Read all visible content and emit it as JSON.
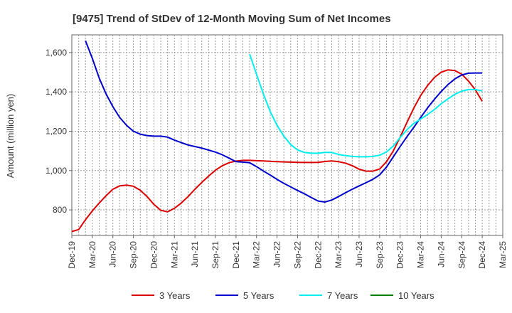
{
  "chart_data": {
    "type": "line",
    "title": "[9475]  Trend of StDev of 12-Month Moving Sum of Net Incomes",
    "xlabel": "",
    "ylabel": "Amount (million yen)",
    "ylim": [
      670,
      1690
    ],
    "yticks": [
      800,
      1000,
      1200,
      1400,
      1600
    ],
    "ytick_labels": [
      "800",
      "1,000",
      "1,200",
      "1,400",
      "1,600"
    ],
    "xlim": [
      "2019-12",
      "2025-03"
    ],
    "xticks": [
      "Dec-19",
      "Mar-20",
      "Jun-20",
      "Sep-20",
      "Dec-20",
      "Mar-21",
      "Jun-21",
      "Sep-21",
      "Dec-21",
      "Mar-22",
      "Jun-22",
      "Sep-22",
      "Dec-22",
      "Mar-23",
      "Jun-23",
      "Sep-23",
      "Dec-23",
      "Mar-24",
      "Jun-24",
      "Sep-24",
      "Dec-24",
      "Mar-25"
    ],
    "grid": true,
    "legend_position": "bottom",
    "series": [
      {
        "name": "3 Years",
        "color": "#dd0000",
        "x": [
          "2019-12",
          "2020-01",
          "2020-02",
          "2020-03",
          "2020-04",
          "2020-05",
          "2020-06",
          "2020-07",
          "2020-08",
          "2020-09",
          "2020-10",
          "2020-11",
          "2020-12",
          "2021-01",
          "2021-02",
          "2021-03",
          "2021-04",
          "2021-05",
          "2021-06",
          "2021-07",
          "2021-08",
          "2021-09",
          "2021-10",
          "2021-11",
          "2021-12",
          "2022-01",
          "2022-02",
          "2022-03",
          "2022-04",
          "2022-05",
          "2022-06",
          "2022-07",
          "2022-08",
          "2022-09",
          "2022-10",
          "2022-11",
          "2022-12",
          "2023-01",
          "2023-02",
          "2023-03",
          "2023-04",
          "2023-05",
          "2023-06",
          "2023-07",
          "2023-08",
          "2023-09",
          "2023-10",
          "2023-11",
          "2023-12",
          "2024-01",
          "2024-02",
          "2024-03",
          "2024-04",
          "2024-05",
          "2024-06",
          "2024-07",
          "2024-08",
          "2024-09",
          "2024-10",
          "2024-11",
          "2024-12"
        ],
        "values": [
          690,
          700,
          750,
          795,
          835,
          872,
          905,
          922,
          926,
          920,
          900,
          868,
          828,
          798,
          790,
          808,
          835,
          868,
          905,
          940,
          972,
          1002,
          1025,
          1040,
          1048,
          1052,
          1052,
          1050,
          1049,
          1047,
          1045,
          1044,
          1043,
          1042,
          1041,
          1041,
          1042,
          1046,
          1049,
          1045,
          1038,
          1025,
          1007,
          997,
          997,
          1008,
          1045,
          1100,
          1170,
          1245,
          1318,
          1382,
          1432,
          1473,
          1500,
          1512,
          1508,
          1490,
          1455,
          1410,
          1352
        ]
      },
      {
        "name": "5 Years",
        "color": "#0000cc",
        "x": [
          "2020-02",
          "2020-03",
          "2020-04",
          "2020-05",
          "2020-06",
          "2020-07",
          "2020-08",
          "2020-09",
          "2020-10",
          "2020-11",
          "2020-12",
          "2021-01",
          "2021-02",
          "2021-03",
          "2021-04",
          "2021-05",
          "2021-06",
          "2021-07",
          "2021-08",
          "2021-09",
          "2021-10",
          "2021-11",
          "2021-12",
          "2022-01",
          "2022-02",
          "2022-03",
          "2022-04",
          "2022-05",
          "2022-06",
          "2022-07",
          "2022-08",
          "2022-09",
          "2022-10",
          "2022-11",
          "2022-12",
          "2023-01",
          "2023-02",
          "2023-03",
          "2023-04",
          "2023-05",
          "2023-06",
          "2023-07",
          "2023-08",
          "2023-09",
          "2023-10",
          "2023-11",
          "2023-12",
          "2024-01",
          "2024-02",
          "2024-03",
          "2024-04",
          "2024-05",
          "2024-06",
          "2024-07",
          "2024-08",
          "2024-09",
          "2024-10",
          "2024-11",
          "2024-12"
        ],
        "values": [
          1660,
          1570,
          1470,
          1390,
          1325,
          1270,
          1230,
          1200,
          1185,
          1178,
          1175,
          1175,
          1170,
          1155,
          1142,
          1130,
          1122,
          1114,
          1104,
          1094,
          1080,
          1063,
          1045,
          1043,
          1040,
          1020,
          998,
          977,
          955,
          935,
          917,
          899,
          882,
          863,
          845,
          840,
          850,
          868,
          887,
          905,
          922,
          938,
          955,
          978,
          1018,
          1070,
          1122,
          1172,
          1220,
          1270,
          1318,
          1362,
          1402,
          1437,
          1466,
          1486,
          1495,
          1496,
          1496
        ]
      },
      {
        "name": "7 Years",
        "color": "#00eeee",
        "x": [
          "2022-02",
          "2022-03",
          "2022-04",
          "2022-05",
          "2022-06",
          "2022-07",
          "2022-08",
          "2022-09",
          "2022-10",
          "2022-11",
          "2022-12",
          "2023-01",
          "2023-02",
          "2023-03",
          "2023-04",
          "2023-05",
          "2023-06",
          "2023-07",
          "2023-08",
          "2023-09",
          "2023-10",
          "2023-11",
          "2023-12",
          "2024-01",
          "2024-02",
          "2024-03",
          "2024-04",
          "2024-05",
          "2024-06",
          "2024-07",
          "2024-08",
          "2024-09",
          "2024-10",
          "2024-11",
          "2024-12"
        ],
        "values": [
          1592,
          1490,
          1390,
          1300,
          1230,
          1175,
          1132,
          1105,
          1092,
          1088,
          1088,
          1092,
          1092,
          1082,
          1076,
          1072,
          1070,
          1070,
          1072,
          1078,
          1095,
          1125,
          1168,
          1208,
          1240,
          1262,
          1285,
          1310,
          1340,
          1365,
          1388,
          1404,
          1412,
          1412,
          1405
        ]
      },
      {
        "name": "10 Years",
        "color": "#008000",
        "x": [],
        "values": []
      }
    ]
  }
}
